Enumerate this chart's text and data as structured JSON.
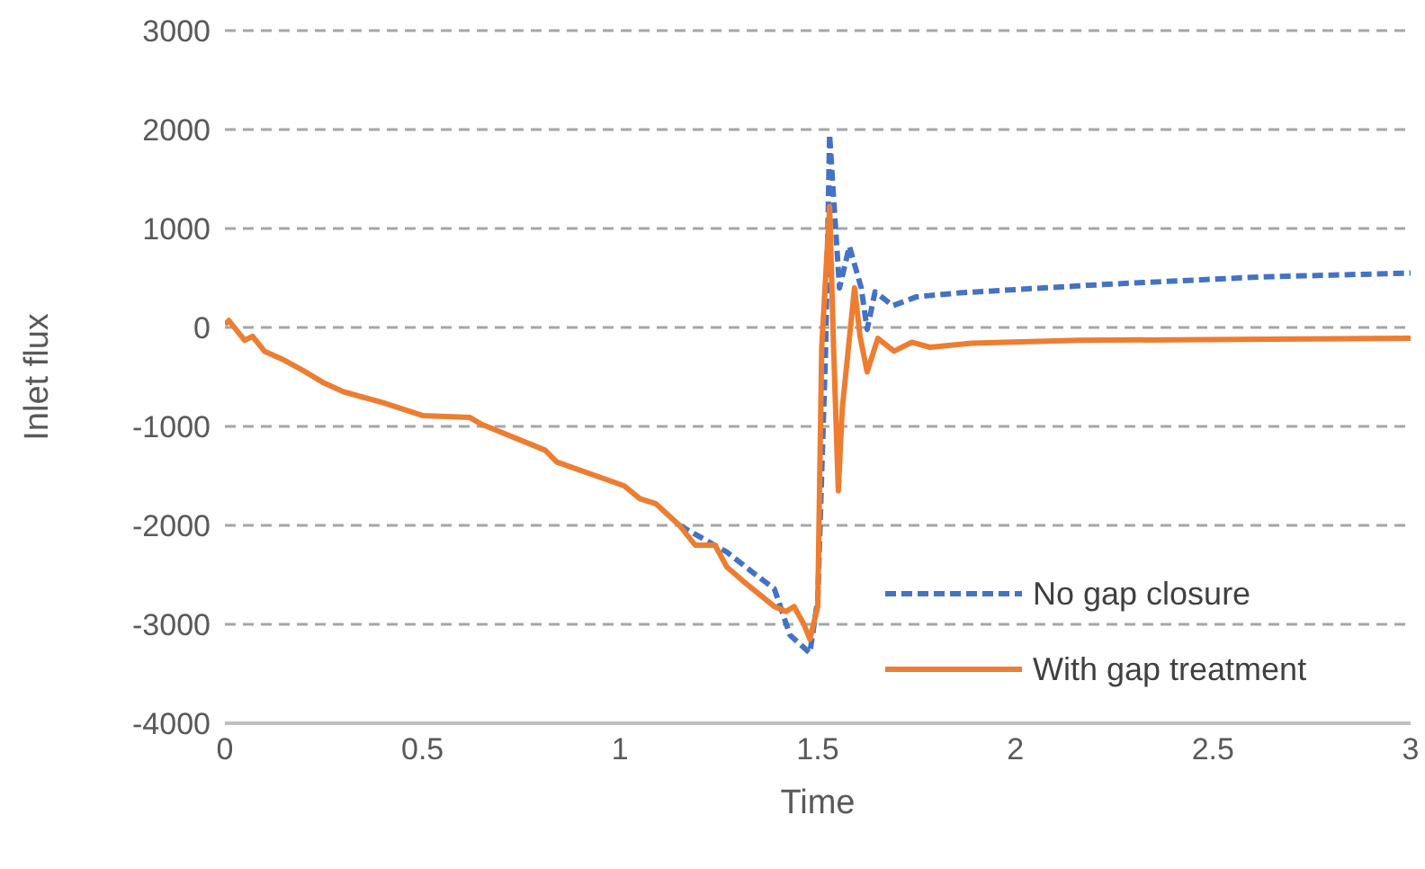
{
  "chart_data": {
    "type": "line",
    "xlabel": "Time",
    "ylabel": "Inlet flux",
    "xlim": [
      0,
      3
    ],
    "xticks": [
      0,
      0.5,
      1,
      1.5,
      2,
      2.5,
      3
    ],
    "ylim": [
      -4000,
      3000
    ],
    "yticks": [
      -4000,
      -3000,
      -2000,
      -1000,
      0,
      1000,
      2000,
      3000
    ],
    "grid": "y",
    "legend": "bottom right",
    "marker": "none",
    "series": [
      {
        "name": "No gap closure",
        "color": "#4472c4",
        "line_style": "dashed",
        "x": [
          1.15,
          1.19,
          1.27,
          1.34,
          1.39,
          1.43,
          1.48,
          1.5,
          1.52,
          1.53,
          1.54,
          1.555,
          1.58,
          1.61,
          1.625,
          1.645,
          1.69,
          1.75,
          1.86,
          2.16,
          2.25,
          2.62,
          3
        ],
        "values": [
          -2000,
          -2090,
          -2270,
          -2490,
          -2640,
          -3110,
          -3290,
          -2750,
          -200,
          1950,
          1310,
          400,
          820,
          400,
          -20,
          360,
          220,
          310,
          350,
          420,
          440,
          510,
          550
        ]
      },
      {
        "name": "With gap treatment",
        "color": "#ed7d31",
        "line_style": "solid",
        "x": [
          0,
          0.01,
          0.05,
          0.07,
          0.1,
          0.15,
          0.2,
          0.25,
          0.3,
          0.4,
          0.5,
          0.62,
          0.65,
          0.81,
          0.84,
          1.01,
          1.05,
          1.09,
          1.15,
          1.19,
          1.24,
          1.27,
          1.31,
          1.39,
          1.42,
          1.44,
          1.465,
          1.48,
          1.5,
          1.51,
          1.53,
          1.54,
          1.552,
          1.562,
          1.593,
          1.607,
          1.625,
          1.652,
          1.693,
          1.738,
          1.784,
          1.89,
          2.16,
          3
        ],
        "values": [
          30,
          70,
          -130,
          -90,
          -240,
          -330,
          -440,
          -560,
          -650,
          -760,
          -890,
          -910,
          -980,
          -1240,
          -1360,
          -1600,
          -1730,
          -1780,
          -2000,
          -2200,
          -2200,
          -2420,
          -2560,
          -2820,
          -2870,
          -2820,
          -3000,
          -3150,
          -2820,
          -200,
          1220,
          -200,
          -1650,
          -820,
          400,
          -90,
          -450,
          -110,
          -240,
          -150,
          -200,
          -160,
          -130,
          -110
        ]
      }
    ]
  }
}
